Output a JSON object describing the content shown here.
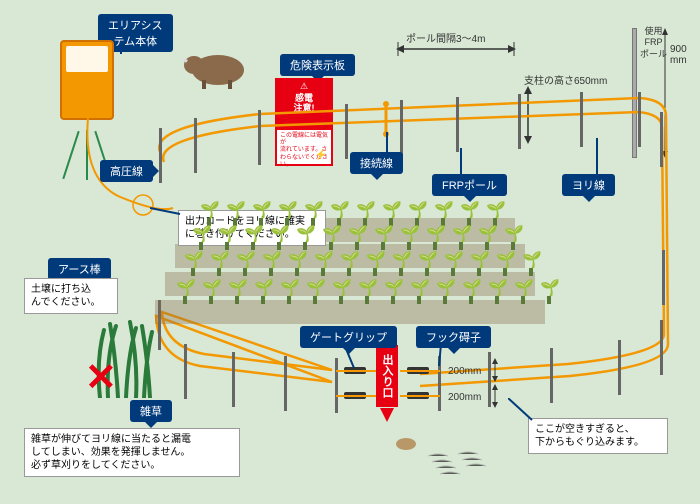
{
  "labels": {
    "system_body": "エリアシス\nテム本体",
    "hv_wire": "高圧線",
    "earth_rod": "アース棒",
    "danger_plate": "危険表示板",
    "conn_wire": "接続線",
    "frp_pole": "FRPポール",
    "yorisen": "ヨリ線",
    "gate_grip": "ゲートグリップ",
    "hook_insulator": "フック碍子",
    "weeds": "雑草"
  },
  "notes": {
    "output_cord": "出力コードをヨリ線に確実\nに巻き付けてください。",
    "earth_note": "土壌に打ち込\nんでください。",
    "weeds_note": "雑草が伸びてヨリ線に当たると漏電\nしてしまい、効果を発揮しません。\n必ず草刈りをしてください。",
    "gap_note": "ここが空きすぎると、\n下からもぐり込みます。"
  },
  "dims": {
    "pole_gap": "ポール間隔3～4m",
    "pole_height": "支柱の高さ650mm",
    "frp_label": "使用\nFRP\nポール",
    "frp_h": "900\nmm",
    "gap200a": "200mm",
    "gap200b": "200mm"
  },
  "danger": {
    "title": "感電\n注意!",
    "body": "この電線には電気が\n流れています。さ\nわらないでください。"
  },
  "entrance": "出入り口",
  "colors": {
    "bg": "#d8e8d5",
    "bubble": "#003a7a",
    "wire": "#f39800",
    "danger": "#e60012"
  }
}
